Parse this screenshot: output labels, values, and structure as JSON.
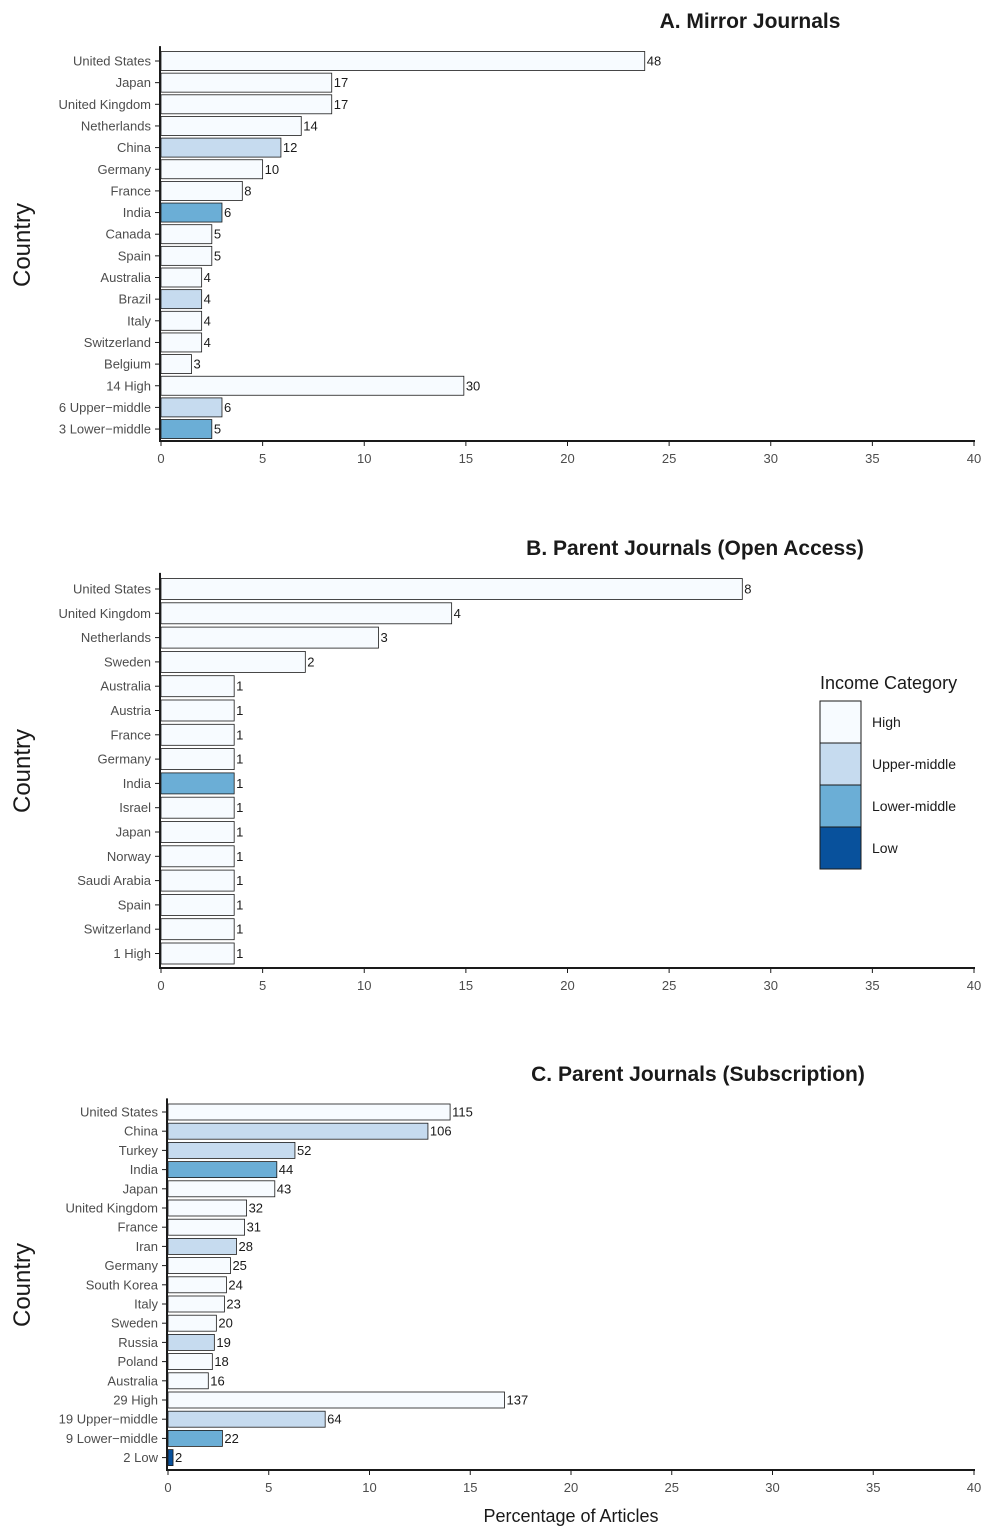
{
  "colors": {
    "High": "#f7fbff",
    "Upper-middle": "#c6dbef",
    "Lower-middle": "#6baed6",
    "Low": "#08519c",
    "outline": "#1a1a1a"
  },
  "legend": {
    "title": "Income Category",
    "items": [
      "High",
      "Upper-middle",
      "Lower-middle",
      "Low"
    ],
    "placement": "right"
  },
  "x_axis_title": "Percentage of Articles",
  "chart_data": [
    {
      "type": "bar",
      "orientation": "horizontal",
      "title": "A. Mirror Journals",
      "ylabel": "Country",
      "xlabel": "",
      "xlim": [
        0,
        40
      ],
      "xticks": [
        0,
        5,
        10,
        15,
        20,
        25,
        30,
        35,
        40
      ],
      "categories": [
        "United States",
        "Japan",
        "United Kingdom",
        "Netherlands",
        "China",
        "Germany",
        "France",
        "India",
        "Canada",
        "Spain",
        "Australia",
        "Brazil",
        "Italy",
        "Switzerland",
        "Belgium",
        "14 High",
        "6 Upper−middle",
        "3 Lower−middle"
      ],
      "values": [
        23.8,
        8.4,
        8.4,
        6.9,
        5.9,
        5.0,
        4.0,
        3.0,
        2.5,
        2.5,
        2.0,
        2.0,
        2.0,
        2.0,
        1.5,
        14.9,
        3.0,
        2.5
      ],
      "labels": [
        "48",
        "17",
        "17",
        "14",
        "12",
        "10",
        "8",
        "6",
        "5",
        "5",
        "4",
        "4",
        "4",
        "4",
        "3",
        "30",
        "6",
        "5"
      ],
      "income": [
        "High",
        "High",
        "High",
        "High",
        "Upper-middle",
        "High",
        "High",
        "Lower-middle",
        "High",
        "High",
        "High",
        "Upper-middle",
        "High",
        "High",
        "High",
        "High",
        "Upper-middle",
        "Lower-middle"
      ]
    },
    {
      "type": "bar",
      "orientation": "horizontal",
      "title": "B. Parent Journals (Open Access)",
      "ylabel": "Country",
      "xlabel": "",
      "xlim": [
        0,
        40
      ],
      "xticks": [
        0,
        5,
        10,
        15,
        20,
        25,
        30,
        35,
        40
      ],
      "categories": [
        "United States",
        "United Kingdom",
        "Netherlands",
        "Sweden",
        "Australia",
        "Austria",
        "France",
        "Germany",
        "India",
        "Israel",
        "Japan",
        "Norway",
        "Saudi Arabia",
        "Spain",
        "Switzerland",
        "1 High"
      ],
      "values": [
        28.6,
        14.3,
        10.7,
        7.1,
        3.6,
        3.6,
        3.6,
        3.6,
        3.6,
        3.6,
        3.6,
        3.6,
        3.6,
        3.6,
        3.6,
        3.6
      ],
      "labels": [
        "8",
        "4",
        "3",
        "2",
        "1",
        "1",
        "1",
        "1",
        "1",
        "1",
        "1",
        "1",
        "1",
        "1",
        "1",
        "1"
      ],
      "income": [
        "High",
        "High",
        "High",
        "High",
        "High",
        "High",
        "High",
        "High",
        "Lower-middle",
        "High",
        "High",
        "High",
        "High",
        "High",
        "High",
        "High"
      ]
    },
    {
      "type": "bar",
      "orientation": "horizontal",
      "title": "C. Parent Journals (Subscription)",
      "ylabel": "Country",
      "xlabel": "Percentage of Articles",
      "xlim": [
        0,
        40
      ],
      "xticks": [
        0,
        5,
        10,
        15,
        20,
        25,
        30,
        35,
        40
      ],
      "categories": [
        "United States",
        "China",
        "Turkey",
        "India",
        "Japan",
        "United Kingdom",
        "France",
        "Iran",
        "Germany",
        "South Korea",
        "Italy",
        "Sweden",
        "Russia",
        "Poland",
        "Australia",
        "29 High",
        "19 Upper−middle",
        "9 Lower−middle",
        "2 Low"
      ],
      "values": [
        14.0,
        12.9,
        6.3,
        5.4,
        5.3,
        3.9,
        3.8,
        3.4,
        3.1,
        2.9,
        2.8,
        2.4,
        2.3,
        2.2,
        2.0,
        16.7,
        7.8,
        2.7,
        0.25
      ],
      "labels": [
        "115",
        "106",
        "52",
        "44",
        "43",
        "32",
        "31",
        "28",
        "25",
        "24",
        "23",
        "20",
        "19",
        "18",
        "16",
        "137",
        "64",
        "22",
        "2"
      ],
      "income": [
        "High",
        "Upper-middle",
        "Upper-middle",
        "Lower-middle",
        "High",
        "High",
        "High",
        "Upper-middle",
        "High",
        "High",
        "High",
        "High",
        "Upper-middle",
        "High",
        "High",
        "High",
        "Upper-middle",
        "Lower-middle",
        "Low"
      ]
    }
  ]
}
